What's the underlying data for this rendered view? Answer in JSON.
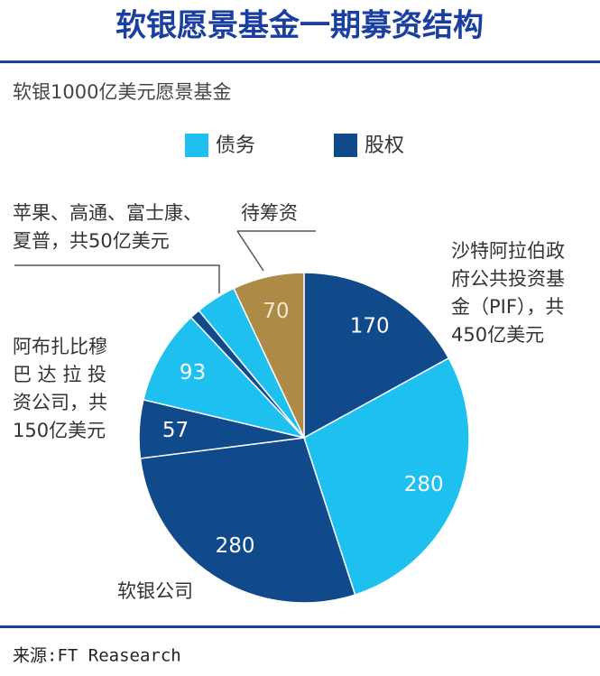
{
  "chart_data": {
    "type": "pie",
    "title": "软银愿景基金一期募资结构",
    "subtitle": "软银1000亿美元愿景基金",
    "legend": [
      {
        "name": "债务",
        "color": "#1ec0ef"
      },
      {
        "name": "股权",
        "color": "#114a8b"
      }
    ],
    "values": [
      170,
      280,
      280,
      57,
      93,
      10,
      40,
      70
    ],
    "value_labels": [
      "170",
      "280",
      "280",
      "57",
      "93",
      null,
      null,
      "70"
    ],
    "colors": [
      "#114a8b",
      "#1ec0ef",
      "#114a8b",
      "#114a8b",
      "#1ec0ef",
      "#114a8b",
      "#1ec0ef",
      "#ae8a47"
    ],
    "annotations": {
      "pif": [
        "沙特阿拉伯政",
        "府公共投资基",
        "金（PIF），共",
        "450亿美元"
      ],
      "mubadala": [
        "阿布扎比穆",
        "巴 达 拉 投",
        "资公司，共",
        "150亿美元"
      ],
      "apple": [
        "苹果、高通、富士康、",
        "夏普，共50亿美元"
      ],
      "pending": "待筹资",
      "softbank": "软银公司"
    },
    "source": "来源:FT Reasearch"
  }
}
